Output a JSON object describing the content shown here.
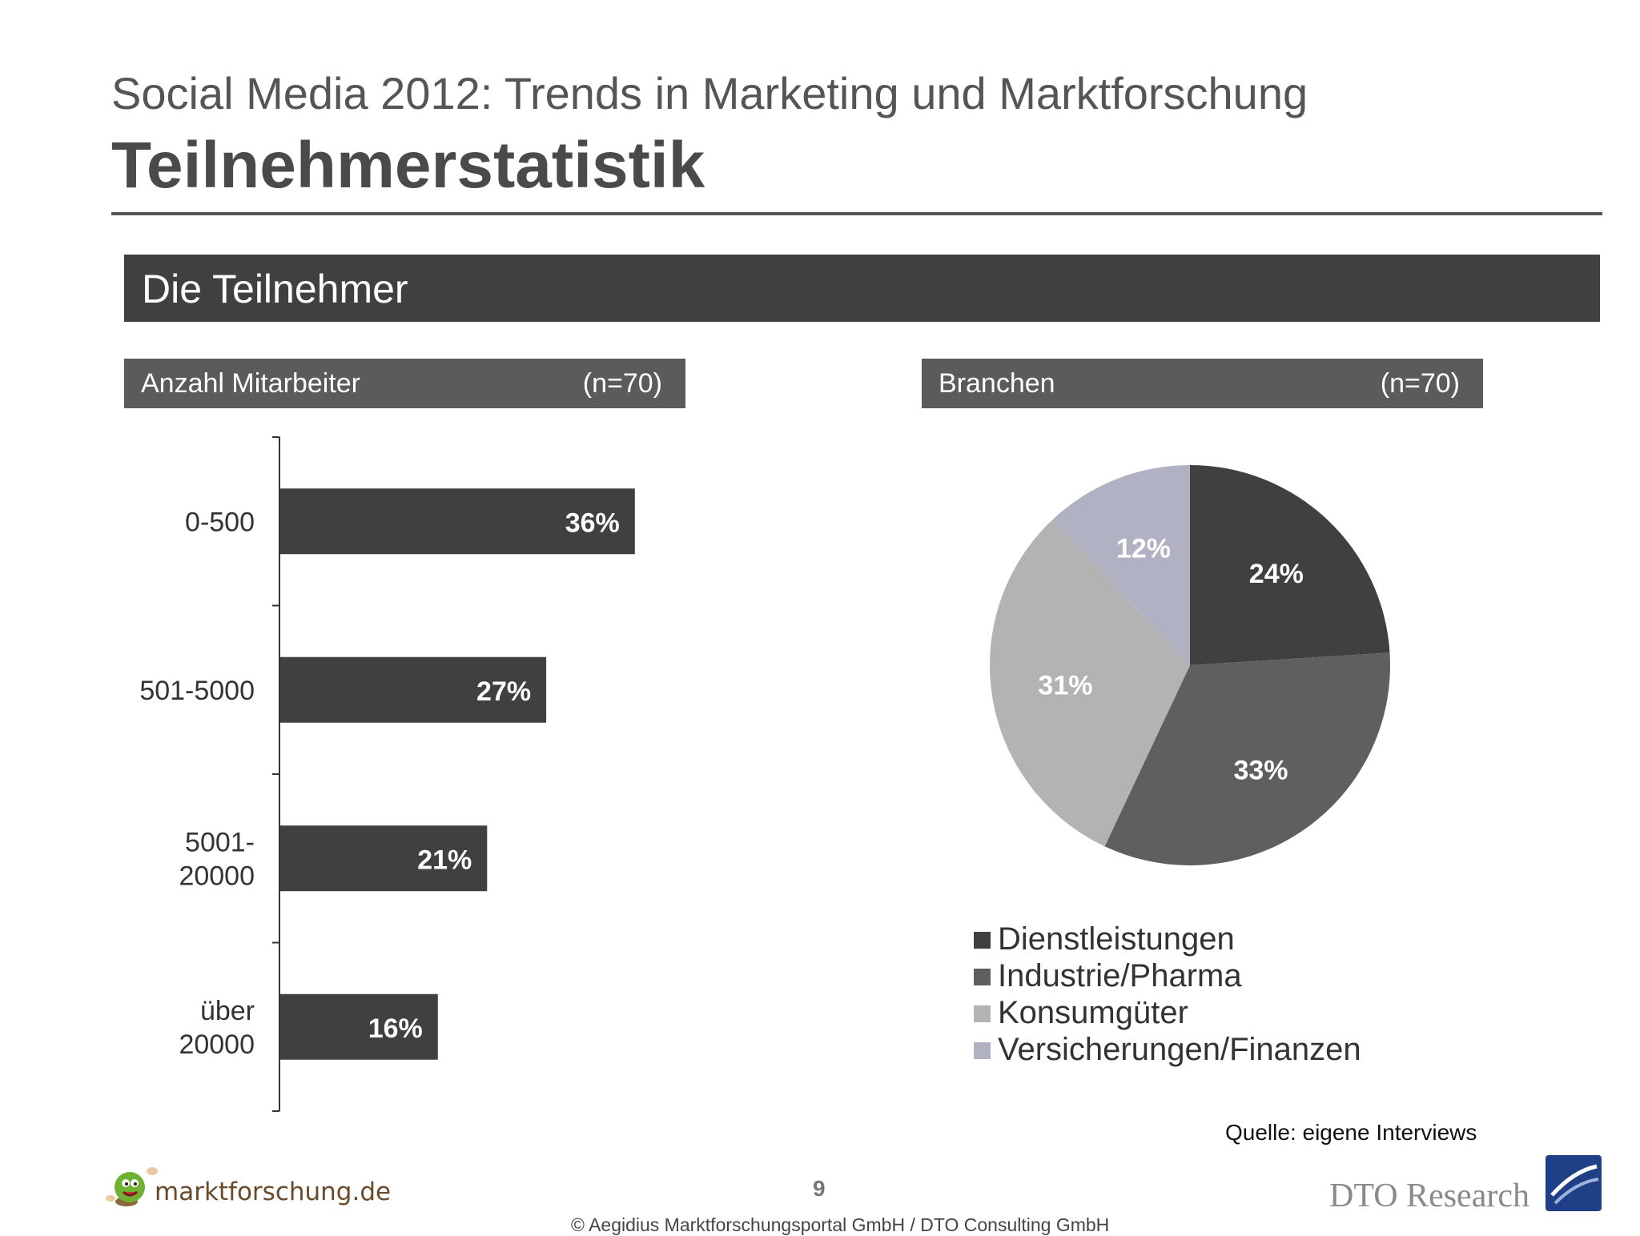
{
  "header": {
    "subtitle": "Social Media 2012: Trends in Marketing und Marktforschung",
    "title": "Teilnehmerstatistik"
  },
  "banner": {
    "label": "Die Teilnehmer"
  },
  "left_panel": {
    "title": "Anzahl Mitarbeiter",
    "n": "(n=70)"
  },
  "right_panel": {
    "title": "Branchen",
    "n": "(n=70)"
  },
  "colors": {
    "bar": "#404040",
    "pie": [
      "#404040",
      "#5f5f5f",
      "#b3b3b3",
      "#b0b2c4"
    ]
  },
  "chart_data": [
    {
      "type": "bar",
      "orientation": "horizontal",
      "categories": [
        [
          "0-500"
        ],
        [
          "501-5000"
        ],
        [
          "5001-",
          "20000"
        ],
        [
          "über",
          "20000"
        ]
      ],
      "values": [
        36,
        27,
        21,
        16
      ],
      "data_labels": [
        "36%",
        "27%",
        "21%",
        "16%"
      ],
      "unit": "%",
      "grid": false
    },
    {
      "type": "pie",
      "categories": [
        "Dienstleistungen",
        "Industrie/Pharma",
        "Konsumgüter",
        "Versicherungen/Finanzen"
      ],
      "values": [
        24,
        33,
        31,
        12
      ],
      "data_labels": [
        "24%",
        "33%",
        "31%",
        "12%"
      ],
      "unit": "%",
      "legend_position": "bottom"
    }
  ],
  "footer": {
    "source": "Quelle: eigene Interviews",
    "page_number": "9",
    "copyright": "© Aegidius Marktforschungsportal GmbH / DTO Consulting GmbH",
    "logo_left": "marktforschung.de",
    "logo_right": "DTO Research"
  }
}
